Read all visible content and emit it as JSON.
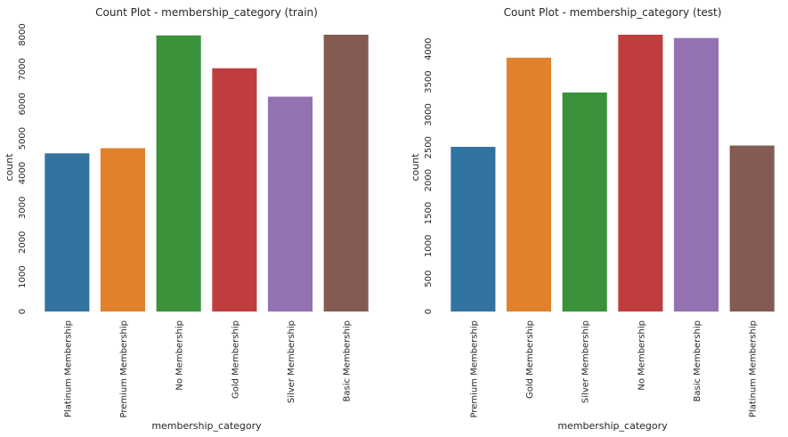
{
  "chart_data": [
    {
      "type": "bar",
      "title": "Count Plot - membership_category (train)",
      "xlabel": "membership_category",
      "ylabel": "count",
      "categories": [
        "Platinum Membership",
        "Premium Membership",
        "No Membership",
        "Gold Membership",
        "Silver Membership",
        "Basic Membership"
      ],
      "values": [
        4570,
        4720,
        7980,
        7030,
        6210,
        8000
      ],
      "colors": [
        "#3274a1",
        "#e1812c",
        "#3a923a",
        "#c03d3e",
        "#9372b2",
        "#845b53"
      ],
      "yticks": [
        0,
        1000,
        2000,
        3000,
        4000,
        5000,
        6000,
        7000,
        8000
      ],
      "ylim": [
        0,
        8000
      ],
      "grid": false
    },
    {
      "type": "bar",
      "title": "Count Plot - membership_category (test)",
      "xlabel": "membership_category",
      "ylabel": "count",
      "categories": [
        "Premium Membership",
        "Gold Membership",
        "Silver Membership",
        "No Membership",
        "Basic Membership",
        "Platinum Membership"
      ],
      "values": [
        2510,
        3870,
        3340,
        4220,
        4170,
        2530
      ],
      "colors": [
        "#3274a1",
        "#e1812c",
        "#3a923a",
        "#c03d3e",
        "#9372b2",
        "#845b53"
      ],
      "yticks": [
        0,
        500,
        1000,
        1500,
        2000,
        2500,
        3000,
        3500,
        4000
      ],
      "ylim": [
        0,
        4220
      ],
      "grid": false
    }
  ]
}
